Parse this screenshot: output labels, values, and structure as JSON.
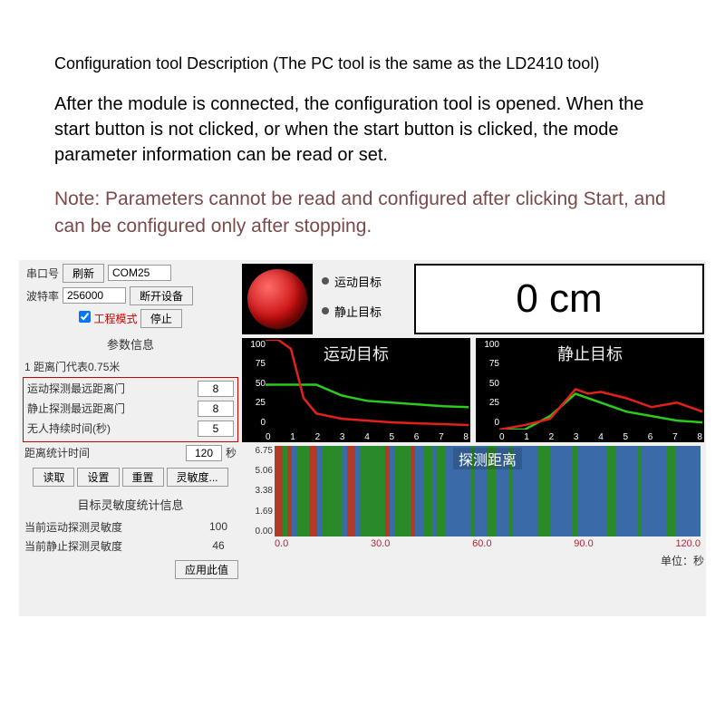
{
  "header": {
    "title": "Configuration tool Description (The PC tool is the same as the LD2410 tool)",
    "description": "After the module is connected, the configuration tool is opened. When the start button is not clicked, or when the start button is clicked, the mode parameter information can be read or set.",
    "note": "Note: Parameters cannot be read and configured after clicking Start, and can be configured only after stopping."
  },
  "connection": {
    "port_label": "串口号",
    "refresh_btn": "刷新",
    "port_value": "COM25",
    "baud_label": "波特率",
    "baud_value": "256000",
    "disconnect_btn": "断开设备",
    "eng_mode_chk": "工程模式",
    "stop_btn": "停止"
  },
  "params": {
    "section_title": "参数信息",
    "gate_note": "1 距离门代表0.75米",
    "motion_gate_label": "运动探测最远距离门",
    "motion_gate_value": "8",
    "static_gate_label": "静止探测最远距离门",
    "static_gate_value": "8",
    "unmanned_label": "无人持续时间(秒)",
    "unmanned_value": "5",
    "stat_time_label": "距离统计时间",
    "stat_time_value": "120",
    "stat_time_unit": "秒",
    "read_btn": "读取",
    "set_btn": "设置",
    "reset_btn": "重置",
    "sens_btn": "灵敏度...",
    "sens_title": "目标灵敏度统计信息",
    "motion_sens_label": "当前运动探测灵敏度",
    "motion_sens_value": "100",
    "static_sens_label": "当前静止探测灵敏度",
    "static_sens_value": "46",
    "apply_btn": "应用此值"
  },
  "indicators": {
    "motion_label": "运动目标",
    "static_label": "静止目标"
  },
  "distance_display": "0 cm",
  "chart_motion": {
    "title": "运动目标",
    "y_ticks": [
      "100",
      "75",
      "50",
      "25",
      "0"
    ],
    "x_ticks": [
      "0",
      "1",
      "2",
      "3",
      "4",
      "5",
      "6",
      "7",
      "8"
    ],
    "red_pts": [
      [
        0,
        100
      ],
      [
        0.5,
        100
      ],
      [
        1,
        90
      ],
      [
        1.5,
        35
      ],
      [
        2,
        18
      ],
      [
        3,
        12
      ],
      [
        4,
        10
      ],
      [
        5,
        8
      ],
      [
        6,
        7
      ],
      [
        7,
        6
      ],
      [
        8,
        5
      ]
    ],
    "green_pts": [
      [
        0,
        50
      ],
      [
        1,
        50
      ],
      [
        2,
        50
      ],
      [
        3,
        38
      ],
      [
        4,
        32
      ],
      [
        5,
        30
      ],
      [
        6,
        28
      ],
      [
        7,
        26
      ],
      [
        8,
        25
      ]
    ],
    "red_color": "#e3201a",
    "green_color": "#2bcb1e"
  },
  "chart_static": {
    "title": "静止目标",
    "y_ticks": [
      "100",
      "75",
      "50",
      "25",
      "0"
    ],
    "x_ticks": [
      "0",
      "1",
      "2",
      "3",
      "4",
      "5",
      "6",
      "7",
      "8"
    ],
    "red_pts": [
      [
        0,
        0
      ],
      [
        1,
        5
      ],
      [
        2,
        12
      ],
      [
        3,
        45
      ],
      [
        3.5,
        40
      ],
      [
        4,
        42
      ],
      [
        5,
        35
      ],
      [
        6,
        25
      ],
      [
        7,
        30
      ],
      [
        8,
        20
      ]
    ],
    "green_pts": [
      [
        0,
        0
      ],
      [
        1,
        0
      ],
      [
        2,
        15
      ],
      [
        3,
        40
      ],
      [
        4,
        30
      ],
      [
        5,
        20
      ],
      [
        6,
        15
      ],
      [
        7,
        10
      ],
      [
        8,
        8
      ]
    ],
    "red_color": "#e3201a",
    "green_color": "#2bcb1e"
  },
  "timeline": {
    "title": "探测距离",
    "y_ticks": [
      "6.75",
      "5.06",
      "3.38",
      "1.69",
      "0.00"
    ],
    "x_ticks": [
      "0.0",
      "30.0",
      "60.0",
      "90.0",
      "120.0"
    ],
    "unit_label": "单位：秒",
    "bg_color": "#3a6aa8",
    "stripes": [
      {
        "x": 0,
        "w": 2,
        "c": "#b43a28"
      },
      {
        "x": 2,
        "w": 1,
        "c": "#2a8a2a"
      },
      {
        "x": 3,
        "w": 1,
        "c": "#b43a28"
      },
      {
        "x": 5,
        "w": 3,
        "c": "#2a8a2a"
      },
      {
        "x": 8,
        "w": 2,
        "c": "#b43a28"
      },
      {
        "x": 11,
        "w": 5,
        "c": "#2a8a2a"
      },
      {
        "x": 17,
        "w": 2,
        "c": "#b43a28"
      },
      {
        "x": 20,
        "w": 6,
        "c": "#2a8a2a"
      },
      {
        "x": 26,
        "w": 1,
        "c": "#b43a28"
      },
      {
        "x": 28,
        "w": 4,
        "c": "#2a8a2a"
      },
      {
        "x": 32,
        "w": 1,
        "c": "#b43a28"
      },
      {
        "x": 35,
        "w": 2,
        "c": "#2a8a2a"
      },
      {
        "x": 38,
        "w": 2,
        "c": "#2a8a2a"
      },
      {
        "x": 46,
        "w": 1,
        "c": "#2a8a2a"
      },
      {
        "x": 50,
        "w": 2,
        "c": "#2a8a2a"
      },
      {
        "x": 55,
        "w": 1,
        "c": "#2a8a2a"
      },
      {
        "x": 62,
        "w": 3,
        "c": "#2a8a2a"
      },
      {
        "x": 70,
        "w": 1,
        "c": "#2a8a2a"
      },
      {
        "x": 78,
        "w": 2,
        "c": "#2a8a2a"
      },
      {
        "x": 85,
        "w": 1,
        "c": "#2a8a2a"
      },
      {
        "x": 92,
        "w": 2,
        "c": "#2a8a2a"
      }
    ]
  }
}
